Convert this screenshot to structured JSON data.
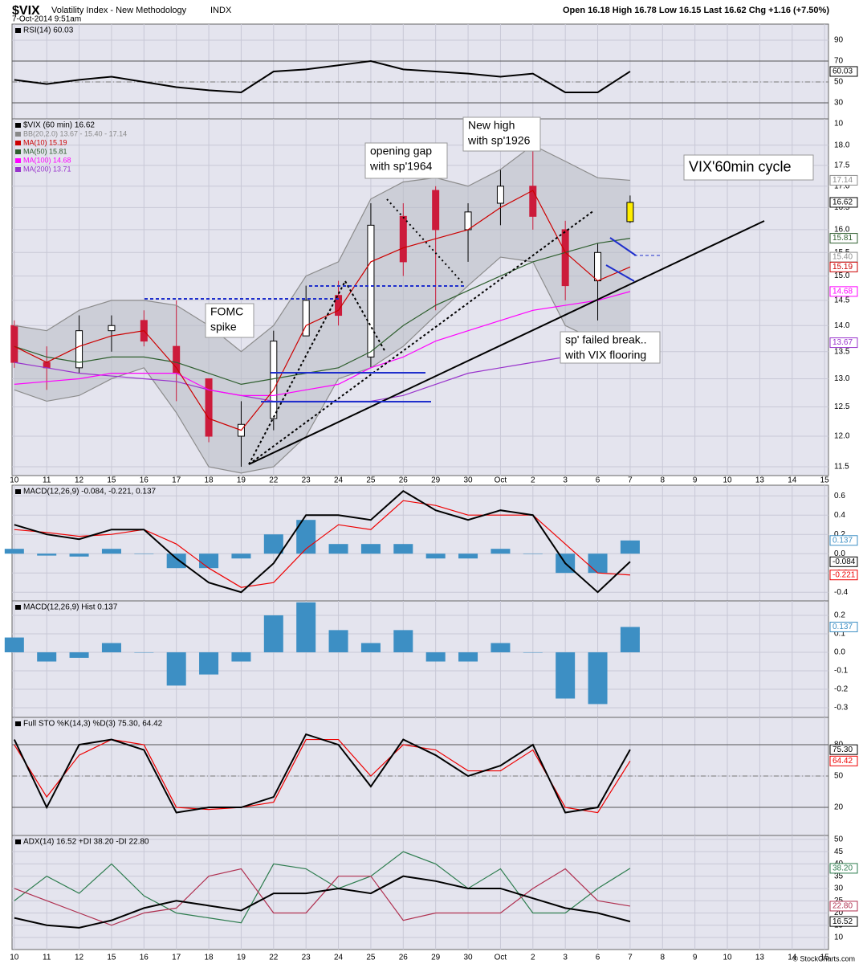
{
  "header": {
    "symbol": "$VIX",
    "name": "Volatility Index - New Methodology",
    "exchange": "INDX",
    "datetime": "7-Oct-2014 9:51am",
    "quote": "Open 16.18  High 16.78  Low 16.15  Last 16.62  Chg +1.16 (+7.50%)",
    "credit": "© StockCharts.com"
  },
  "x_axis": {
    "x": [
      0,
      1,
      2,
      3,
      4,
      5,
      6,
      7,
      8,
      9,
      10,
      11,
      12,
      13,
      14,
      15,
      16,
      17,
      18,
      19
    ],
    "xlim": [
      -0.07,
      25.12
    ],
    "xticks": [
      {
        "value": 0,
        "label": "10"
      },
      {
        "value": 1,
        "label": "11"
      },
      {
        "value": 2,
        "label": "12"
      },
      {
        "value": 3,
        "label": "15"
      },
      {
        "value": 4,
        "label": "16"
      },
      {
        "value": 5,
        "label": "17"
      },
      {
        "value": 6,
        "label": "18"
      },
      {
        "value": 7,
        "label": "19"
      },
      {
        "value": 8,
        "label": "22"
      },
      {
        "value": 9,
        "label": "23"
      },
      {
        "value": 10,
        "label": "24"
      },
      {
        "value": 11,
        "label": "25"
      },
      {
        "value": 12,
        "label": "26"
      },
      {
        "value": 13,
        "label": "29"
      },
      {
        "value": 14,
        "label": "30"
      },
      {
        "value": 15,
        "label": "Oct"
      },
      {
        "value": 16,
        "label": "2"
      },
      {
        "value": 17,
        "label": "3"
      },
      {
        "value": 18,
        "label": "6"
      },
      {
        "value": 19,
        "label": "7"
      },
      {
        "value": 20,
        "label": "8"
      },
      {
        "value": 21,
        "label": "9"
      },
      {
        "value": 22,
        "label": "10"
      },
      {
        "value": 23,
        "label": "13"
      },
      {
        "value": 24,
        "label": "14"
      },
      {
        "value": 25,
        "label": "15"
      }
    ]
  },
  "chart_data": [
    {
      "type": "line",
      "ylim": [
        14.6,
        105.4
      ],
      "yticks": [
        90,
        70,
        50,
        30,
        10
      ],
      "reference_lines": [
        70,
        50,
        30
      ],
      "legend": [
        {
          "text": "RSI(14) 60.03",
          "color": "#000000"
        }
      ],
      "series": [
        {
          "name": "RSI(14)",
          "color": "#000000",
          "values": [
            52,
            48,
            52,
            55,
            50,
            45,
            42,
            40,
            60,
            62,
            66,
            70,
            62,
            60,
            58,
            55,
            58,
            40,
            40,
            60.03
          ]
        }
      ],
      "tags": [
        {
          "value": 60.03,
          "color": "#000000"
        }
      ]
    },
    {
      "type": "candlestick",
      "log": true,
      "ylim": [
        11.36,
        18.67
      ],
      "yticks": [
        {
          "value": 18,
          "label": "18.0"
        },
        17.5,
        {
          "value": 17,
          "label": "17.0"
        },
        16.5,
        {
          "value": 16,
          "label": "16.0"
        },
        15.5,
        {
          "value": 15,
          "label": "15.0"
        },
        14.5,
        {
          "value": 14,
          "label": "14.0"
        },
        13.5,
        {
          "value": 13,
          "label": "13.0"
        },
        12.5,
        {
          "value": 12,
          "label": "12.0"
        },
        11.5
      ],
      "up_color": "#000000",
      "down_color": "#cc1b3b",
      "highlight_last_color": "#ffee00",
      "band_color": "#b8bcc4",
      "ohlc": {
        "open": [
          14.0,
          13.3,
          13.2,
          13.9,
          14.1,
          13.6,
          13.0,
          12.0,
          12.3,
          13.8,
          14.6,
          13.4,
          16.3,
          16.9,
          16.0,
          16.6,
          17.0,
          16.0,
          14.9,
          16.18
        ],
        "high": [
          14.1,
          13.6,
          14.2,
          14.2,
          14.3,
          14.5,
          13.0,
          12.6,
          13.9,
          14.8,
          14.9,
          16.6,
          16.6,
          17.0,
          16.6,
          17.4,
          18.0,
          16.2,
          15.7,
          16.78
        ],
        "low": [
          13.2,
          12.8,
          13.1,
          13.5,
          13.6,
          12.6,
          11.9,
          11.5,
          12.1,
          13.8,
          14.0,
          13.2,
          15.0,
          14.3,
          15.3,
          16.1,
          16.0,
          14.5,
          14.1,
          16.15
        ],
        "close": [
          13.3,
          13.2,
          13.9,
          14.0,
          13.7,
          13.1,
          12.0,
          12.2,
          13.7,
          14.5,
          14.2,
          16.1,
          15.3,
          16.0,
          16.4,
          17.0,
          16.3,
          14.8,
          15.5,
          16.62
        ]
      },
      "series": [
        {
          "name": "BB upper",
          "color": "#8c8c8c",
          "values": [
            14.0,
            13.9,
            14.3,
            14.5,
            14.5,
            14.4,
            14.0,
            13.5,
            14.0,
            15.0,
            15.3,
            16.7,
            17.1,
            17.2,
            17.0,
            17.4,
            18.0,
            17.6,
            17.2,
            17.14
          ]
        },
        {
          "name": "BB lower",
          "color": "#8c8c8c",
          "values": [
            12.8,
            12.6,
            12.7,
            13.0,
            13.2,
            12.4,
            11.5,
            11.4,
            11.5,
            12.0,
            13.0,
            13.2,
            13.6,
            14.2,
            14.8,
            15.4,
            15.3,
            14.0,
            13.7,
            13.67
          ]
        },
        {
          "name": "MA(200)",
          "color": "#9933cc",
          "values": [
            13.3,
            13.2,
            13.1,
            13.05,
            13.0,
            12.95,
            12.8,
            12.7,
            12.6,
            12.6,
            12.6,
            12.6,
            12.7,
            12.9,
            13.1,
            13.2,
            13.3,
            13.4,
            13.6,
            13.71
          ]
        },
        {
          "name": "MA(100)",
          "color": "#ff00ff",
          "values": [
            12.9,
            12.95,
            13.0,
            13.1,
            13.1,
            13.1,
            12.8,
            12.7,
            12.7,
            12.8,
            12.9,
            13.2,
            13.4,
            13.7,
            13.9,
            14.1,
            14.3,
            14.4,
            14.5,
            14.68
          ]
        },
        {
          "name": "MA(50)",
          "color": "#2f5f2f",
          "values": [
            13.6,
            13.4,
            13.3,
            13.4,
            13.4,
            13.3,
            13.1,
            12.9,
            13.0,
            13.1,
            13.2,
            13.5,
            14.0,
            14.4,
            14.7,
            15.0,
            15.3,
            15.5,
            15.7,
            15.81
          ]
        },
        {
          "name": "MA(10)",
          "color": "#cc0000",
          "values": [
            13.6,
            13.3,
            13.6,
            13.8,
            13.9,
            13.2,
            12.3,
            12.1,
            12.8,
            14.0,
            14.3,
            15.3,
            15.6,
            15.8,
            16.0,
            16.5,
            16.9,
            15.5,
            14.9,
            15.19
          ]
        }
      ],
      "legend": [
        {
          "text": "$VIX (60 min) 16.62",
          "color": "#000000"
        },
        {
          "text": "BB(20,2.0) 13.67 - 15.40 - 17.14",
          "color": "#888888"
        },
        {
          "text": "MA(10) 15.19",
          "color": "#cc0000"
        },
        {
          "text": "MA(50) 15.81",
          "color": "#2f5f2f"
        },
        {
          "text": "MA(100) 14.68",
          "color": "#ff00ff"
        },
        {
          "text": "MA(200) 13.71",
          "color": "#9933cc"
        }
      ],
      "tags": [
        {
          "value": 17.14,
          "color": "#8c8c8c"
        },
        {
          "value": 16.62,
          "color": "#000000"
        },
        {
          "value": 15.81,
          "color": "#2f5f2f"
        },
        {
          "value": 15.4,
          "label": "15.40",
          "color": "#8c8c8c"
        },
        {
          "value": 15.19,
          "color": "#cc0000"
        },
        {
          "value": 14.68,
          "color": "#ff00ff"
        },
        {
          "value": 13.67,
          "color": "#9933cc"
        }
      ],
      "annotations": [
        {
          "lines": [
            "opening gap",
            "with sp'1964"
          ]
        },
        {
          "lines": [
            "New high",
            "with sp'1926"
          ]
        },
        {
          "lines": [
            "FOMC",
            "spike"
          ]
        },
        {
          "lines": [
            "VIX'60min cycle"
          ]
        },
        {
          "lines": [
            "sp' failed break..",
            "with VIX flooring"
          ]
        }
      ]
    },
    {
      "type": "line",
      "ylim": [
        -0.49,
        0.71
      ],
      "yticks": [
        0.6,
        0.4,
        0.2,
        {
          "value": 0,
          "label": "0.0"
        },
        -0.2,
        -0.4
      ],
      "legend": [
        {
          "text": "MACD(12,26,9) -0.084, -0.221, 0.137",
          "color": "#000000"
        }
      ],
      "series": [
        {
          "name": "Histogram",
          "type": "bar",
          "color": "#3d8fc4",
          "values": [
            0.05,
            -0.02,
            -0.03,
            0.05,
            0.0,
            -0.15,
            -0.15,
            -0.05,
            0.2,
            0.35,
            0.1,
            0.1,
            0.1,
            -0.05,
            -0.05,
            0.05,
            0.0,
            -0.2,
            -0.2,
            0.137
          ]
        },
        {
          "name": "Signal",
          "color": "#ee0000",
          "values": [
            0.25,
            0.22,
            0.18,
            0.2,
            0.25,
            0.1,
            -0.15,
            -0.35,
            -0.3,
            0.05,
            0.3,
            0.25,
            0.55,
            0.5,
            0.4,
            0.4,
            0.4,
            0.1,
            -0.2,
            -0.221
          ]
        },
        {
          "name": "MACD",
          "color": "#000000",
          "values": [
            0.3,
            0.2,
            0.15,
            0.25,
            0.25,
            -0.05,
            -0.3,
            -0.4,
            -0.1,
            0.4,
            0.4,
            0.35,
            0.65,
            0.45,
            0.35,
            0.45,
            0.4,
            -0.1,
            -0.4,
            -0.084
          ]
        }
      ],
      "tags": [
        {
          "value": 0.137,
          "color": "#3d8fc4"
        },
        {
          "value": -0.084,
          "color": "#000000"
        },
        {
          "value": -0.221,
          "color": "#ee0000"
        }
      ]
    },
    {
      "type": "bar",
      "ylim": [
        -0.352,
        0.278
      ],
      "yticks": [
        0.2,
        0.1,
        {
          "value": 0,
          "label": "0.0"
        },
        -0.1,
        -0.2,
        -0.3
      ],
      "legend": [
        {
          "text": "MACD(12,26,9) Hist 0.137",
          "color": "#000000"
        }
      ],
      "series": [
        {
          "name": "Hist",
          "color": "#3d8fc4",
          "values": [
            0.08,
            -0.05,
            -0.03,
            0.05,
            0.0,
            -0.18,
            -0.12,
            -0.05,
            0.2,
            0.27,
            0.12,
            0.05,
            0.12,
            -0.05,
            -0.05,
            0.05,
            0.0,
            -0.25,
            -0.28,
            0.137
          ]
        }
      ],
      "tags": [
        {
          "value": 0.137,
          "color": "#3d8fc4"
        }
      ]
    },
    {
      "type": "line",
      "ylim": [
        -6.9,
        106.2
      ],
      "yticks": [
        80,
        50,
        20
      ],
      "reference_lines": [
        80,
        50,
        20
      ],
      "legend": [
        {
          "text": "Full STO %K(14,3) %D(3) 75.30, 64.42",
          "color": "#000000"
        }
      ],
      "series": [
        {
          "name": "%D",
          "color": "#ee0000",
          "values": [
            80,
            30,
            70,
            85,
            80,
            20,
            18,
            20,
            25,
            85,
            85,
            50,
            80,
            75,
            55,
            55,
            75,
            20,
            15,
            64.42
          ]
        },
        {
          "name": "%K",
          "color": "#000000",
          "values": [
            85,
            20,
            80,
            85,
            75,
            15,
            20,
            20,
            30,
            90,
            80,
            40,
            85,
            70,
            50,
            60,
            80,
            15,
            20,
            75.3
          ]
        }
      ],
      "tags": [
        {
          "value": 75.3,
          "label": "75.30",
          "color": "#000000"
        },
        {
          "value": 64.42,
          "color": "#ee0000"
        }
      ]
    },
    {
      "type": "line",
      "ylim": [
        5.1,
        51.6
      ],
      "yticks": [
        50,
        45,
        40,
        35,
        30,
        25,
        20,
        15,
        10
      ],
      "legend": [
        {
          "text": "ADX(14) 16.52 +DI 38.20 -DI 22.80",
          "color": "#000000"
        }
      ],
      "series": [
        {
          "name": "+DI",
          "color": "#2e7d4f",
          "values": [
            25,
            35,
            28,
            40,
            27,
            20,
            18,
            16,
            40,
            38,
            30,
            35,
            45,
            40,
            30,
            38,
            20,
            20,
            30,
            38.2
          ]
        },
        {
          "name": "-DI",
          "color": "#b03050",
          "values": [
            30,
            25,
            20,
            15,
            20,
            22,
            35,
            38,
            20,
            20,
            35,
            35,
            17,
            20,
            20,
            20,
            30,
            38,
            25,
            22.8
          ]
        },
        {
          "name": "ADX",
          "color": "#000000",
          "values": [
            18,
            15,
            14,
            17,
            22,
            25,
            23,
            21,
            28,
            28,
            30,
            28,
            35,
            33,
            30,
            30,
            26,
            22,
            20,
            16.52
          ]
        }
      ],
      "tags": [
        {
          "value": 38.2,
          "label": "38.20",
          "color": "#2e7d4f"
        },
        {
          "value": 22.8,
          "label": "22.80",
          "color": "#b03050"
        },
        {
          "value": 16.52,
          "color": "#000000"
        }
      ]
    }
  ]
}
